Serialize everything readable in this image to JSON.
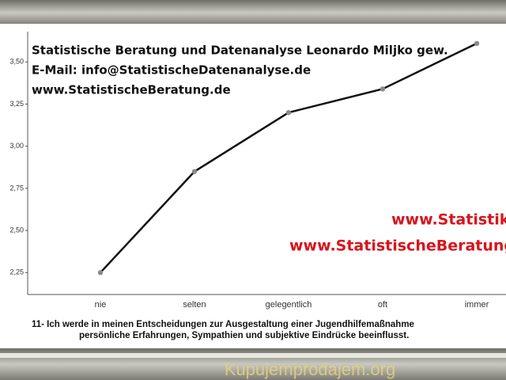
{
  "chart_data": {
    "type": "line",
    "watermark_lines": [
      "Statistische Beratung und Datenanalyse Leonardo Miljko gew.",
      "E-Mail: info@StatistischeDatenanalyse.de",
      "www.StatistischeBeratung.de"
    ],
    "red_watermark_lines": [
      "www.Statistik",
      "www.StatistischeBeratung"
    ],
    "categories": [
      "nie",
      "selten",
      "gelegentlich",
      "oft",
      "immer"
    ],
    "values": [
      2.25,
      2.85,
      3.2,
      3.34,
      3.61
    ],
    "color": "#111111",
    "marker_color": "#8a8a8a",
    "ylim": [
      2.12,
      3.68
    ],
    "yticks": [
      {
        "value": 2.25,
        "label": "2,25"
      },
      {
        "value": 2.5,
        "label": "2,50"
      },
      {
        "value": 2.75,
        "label": "2,75"
      },
      {
        "value": 3.0,
        "label": "3,00"
      },
      {
        "value": 3.25,
        "label": "3,25"
      },
      {
        "value": 3.5,
        "label": "3,50"
      }
    ],
    "grid": false,
    "caption_lines": [
      "11- Ich werde in meinen Entscheidungen zur Ausgestaltung einer Jugendhilfemaßnahme",
      "persönliche Erfahrungen, Sympathien und subjektive Eindrücke beeinflusst."
    ],
    "site_watermark": "Kupujemprodajem.org"
  }
}
